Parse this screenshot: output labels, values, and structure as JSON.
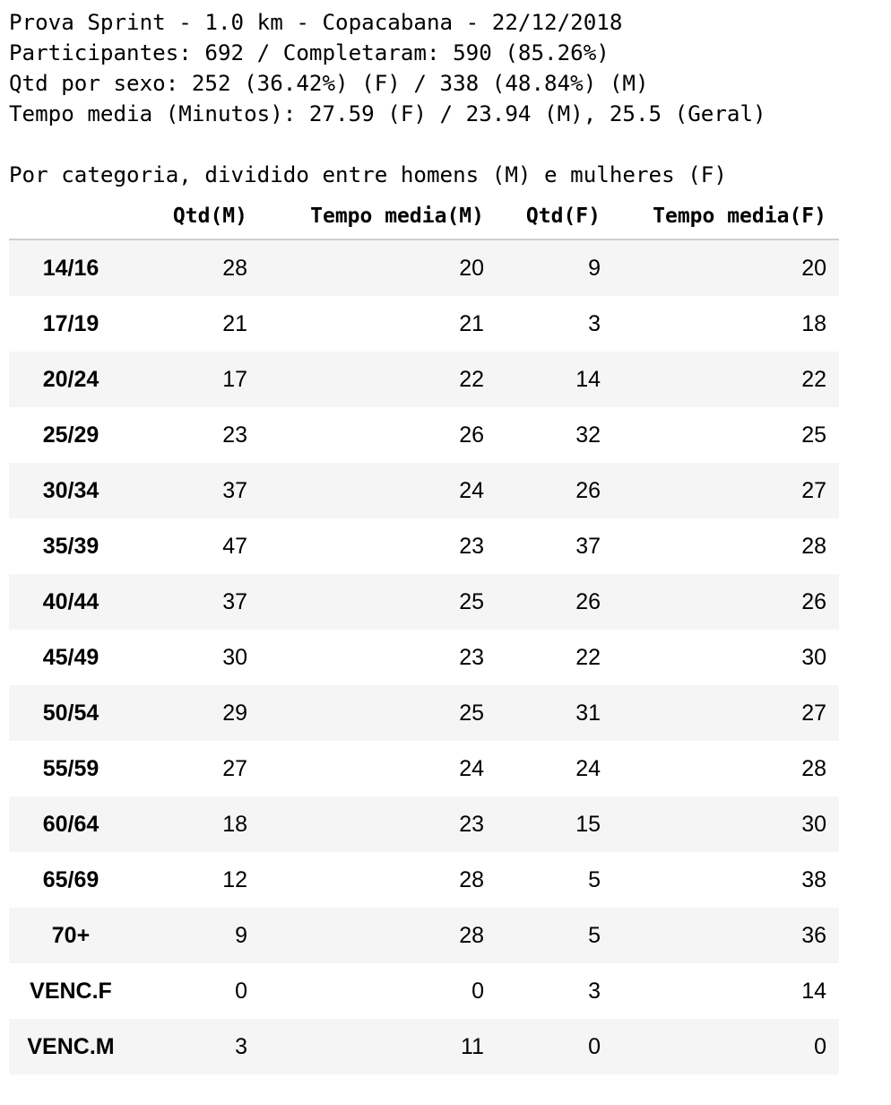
{
  "summary": {
    "line1": "Prova Sprint - 1.0 km - Copacabana - 22/12/2018",
    "line2": "Participantes: 692 / Completaram: 590 (85.26%)",
    "line3": "Qtd por sexo: 252 (36.42%) (F) / 338 (48.84%) (M)",
    "line4": "Tempo media (Minutos): 27.59 (F) / 23.94 (M), 25.5 (Geral)",
    "line5": "Por categoria, dividido entre homens (M) e mulheres (F)"
  },
  "table": {
    "columns": [
      "Qtd(M)",
      "Tempo media(M)",
      "Qtd(F)",
      "Tempo media(F)"
    ],
    "rows": [
      {
        "category": "14/16",
        "qtd_m": "28",
        "tempo_m": "20",
        "qtd_f": "9",
        "tempo_f": "20"
      },
      {
        "category": "17/19",
        "qtd_m": "21",
        "tempo_m": "21",
        "qtd_f": "3",
        "tempo_f": "18"
      },
      {
        "category": "20/24",
        "qtd_m": "17",
        "tempo_m": "22",
        "qtd_f": "14",
        "tempo_f": "22"
      },
      {
        "category": "25/29",
        "qtd_m": "23",
        "tempo_m": "26",
        "qtd_f": "32",
        "tempo_f": "25"
      },
      {
        "category": "30/34",
        "qtd_m": "37",
        "tempo_m": "24",
        "qtd_f": "26",
        "tempo_f": "27"
      },
      {
        "category": "35/39",
        "qtd_m": "47",
        "tempo_m": "23",
        "qtd_f": "37",
        "tempo_f": "28"
      },
      {
        "category": "40/44",
        "qtd_m": "37",
        "tempo_m": "25",
        "qtd_f": "26",
        "tempo_f": "26"
      },
      {
        "category": "45/49",
        "qtd_m": "30",
        "tempo_m": "23",
        "qtd_f": "22",
        "tempo_f": "30"
      },
      {
        "category": "50/54",
        "qtd_m": "29",
        "tempo_m": "25",
        "qtd_f": "31",
        "tempo_f": "27"
      },
      {
        "category": "55/59",
        "qtd_m": "27",
        "tempo_m": "24",
        "qtd_f": "24",
        "tempo_f": "28"
      },
      {
        "category": "60/64",
        "qtd_m": "18",
        "tempo_m": "23",
        "qtd_f": "15",
        "tempo_f": "30"
      },
      {
        "category": "65/69",
        "qtd_m": "12",
        "tempo_m": "28",
        "qtd_f": "5",
        "tempo_f": "38"
      },
      {
        "category": "70+",
        "qtd_m": "9",
        "tempo_m": "28",
        "qtd_f": "5",
        "tempo_f": "36"
      },
      {
        "category": "VENC.F",
        "qtd_m": "0",
        "tempo_m": "0",
        "qtd_f": "3",
        "tempo_f": "14"
      },
      {
        "category": "VENC.M",
        "qtd_m": "3",
        "tempo_m": "11",
        "qtd_f": "0",
        "tempo_f": "0"
      }
    ]
  },
  "colors": {
    "striped_row": "#f5f5f5",
    "header_rule": "#cfcfcf",
    "text": "#000000"
  }
}
